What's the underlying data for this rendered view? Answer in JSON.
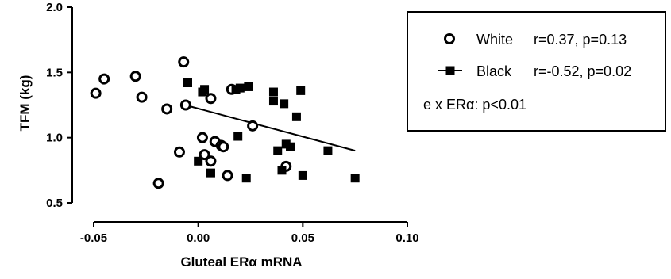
{
  "chart_data": {
    "type": "scatter",
    "xlabel": "Gluteal ERα mRNA",
    "ylabel": "TFM (kg)",
    "xlim": [
      -0.05,
      0.1
    ],
    "ylim": [
      0.5,
      2.0
    ],
    "x_ticks": [
      -0.05,
      0.0,
      0.05,
      0.1
    ],
    "x_tick_labels": [
      "-0.05",
      "0.00",
      "0.05",
      "0.10"
    ],
    "y_ticks": [
      0.5,
      1.0,
      1.5,
      2.0
    ],
    "y_tick_labels": [
      "0.5",
      "1.0",
      "1.5",
      "2.0"
    ],
    "grid": false,
    "legend_position": "top-right",
    "series": [
      {
        "name": "White",
        "label": "White  r=0.37, p=0.13",
        "marker": "open-circle",
        "points": [
          [
            -0.049,
            1.34
          ],
          [
            -0.045,
            1.45
          ],
          [
            -0.03,
            1.47
          ],
          [
            -0.027,
            1.31
          ],
          [
            -0.019,
            0.65
          ],
          [
            -0.015,
            1.22
          ],
          [
            -0.009,
            0.89
          ],
          [
            -0.007,
            1.58
          ],
          [
            -0.006,
            1.25
          ],
          [
            0.002,
            1.0
          ],
          [
            0.003,
            0.87
          ],
          [
            0.006,
            1.3
          ],
          [
            0.006,
            0.82
          ],
          [
            0.008,
            0.97
          ],
          [
            0.011,
            0.94
          ],
          [
            0.012,
            0.93
          ],
          [
            0.014,
            0.71
          ],
          [
            0.016,
            1.37
          ],
          [
            0.026,
            1.09
          ],
          [
            0.042,
            0.78
          ]
        ]
      },
      {
        "name": "Black",
        "label": "Black  r=-0.52, p=0.02",
        "marker": "filled-square",
        "points": [
          [
            -0.005,
            1.42
          ],
          [
            0.0,
            0.82
          ],
          [
            0.002,
            1.35
          ],
          [
            0.003,
            1.37
          ],
          [
            0.006,
            0.73
          ],
          [
            0.018,
            1.37
          ],
          [
            0.019,
            1.01
          ],
          [
            0.02,
            1.38
          ],
          [
            0.023,
            0.69
          ],
          [
            0.024,
            1.39
          ],
          [
            0.036,
            1.28
          ],
          [
            0.036,
            1.35
          ],
          [
            0.038,
            0.9
          ],
          [
            0.04,
            0.75
          ],
          [
            0.041,
            1.26
          ],
          [
            0.042,
            0.95
          ],
          [
            0.044,
            0.93
          ],
          [
            0.047,
            1.16
          ],
          [
            0.049,
            1.36
          ],
          [
            0.05,
            0.71
          ],
          [
            0.062,
            0.9
          ],
          [
            0.075,
            0.69
          ]
        ],
        "fit_line": [
          [
            -0.004,
            1.24
          ],
          [
            0.075,
            0.9
          ]
        ]
      }
    ],
    "legend": {
      "entries": [
        {
          "name": "White",
          "stats": "r=0.37, p=0.13"
        },
        {
          "name": "Black",
          "stats": "r=-0.52, p=0.02"
        }
      ],
      "note": "e x ERα: p<0.01"
    }
  }
}
